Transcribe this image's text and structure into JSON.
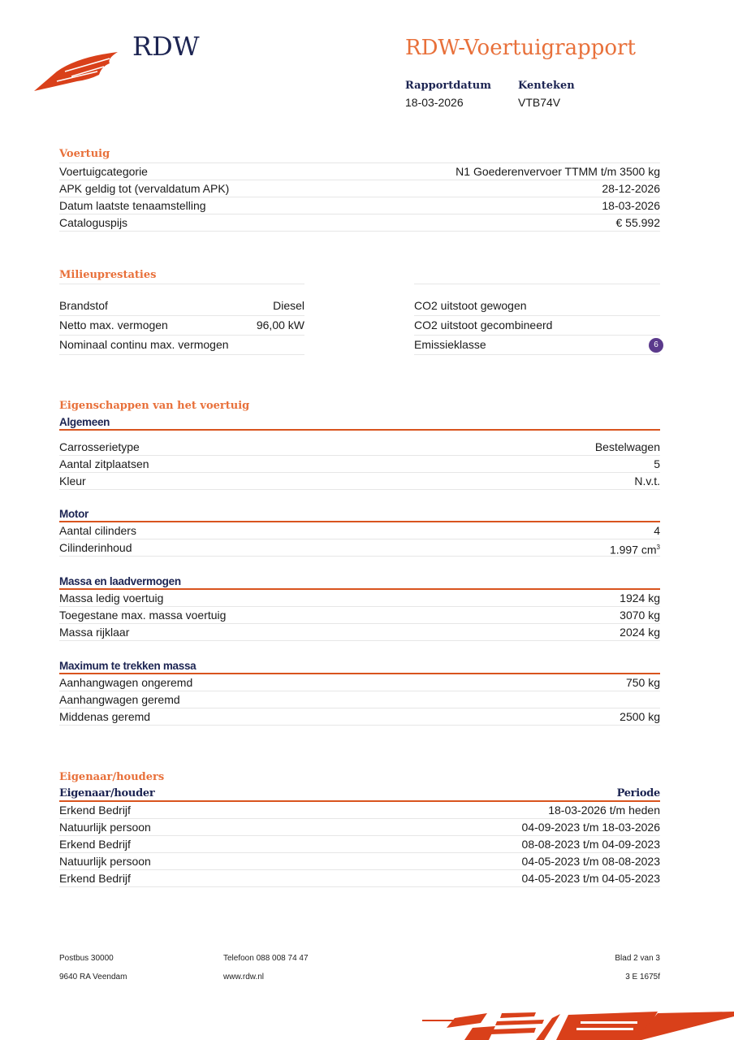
{
  "header": {
    "logo_text": "RDW",
    "title": "RDW-Voertuigrapport",
    "meta": [
      {
        "label": "Rapportdatum",
        "value": "18-03-2026"
      },
      {
        "label": "Kenteken",
        "value": "VTB74V"
      }
    ]
  },
  "voertuig": {
    "heading": "Voertuig",
    "rows": [
      {
        "label": "Voertuigcategorie",
        "value": "N1 Goederenvervoer TTMM t/m 3500 kg"
      },
      {
        "label": "APK geldig tot (vervaldatum APK)",
        "value": "28-12-2026"
      },
      {
        "label": "Datum laatste tenaamstelling",
        "value": "18-03-2026"
      },
      {
        "label": "Cataloguspijs",
        "value": "€ 55.992"
      }
    ]
  },
  "milieu": {
    "heading": "Milieuprestaties",
    "left": [
      {
        "label": "Brandstof",
        "value": "Diesel"
      },
      {
        "label": "Netto max. vermogen",
        "value": "96,00 kW"
      },
      {
        "label": "Nominaal continu max. vermogen",
        "value": ""
      }
    ],
    "right": [
      {
        "label": "CO2 uitstoot gewogen",
        "value": ""
      },
      {
        "label": "CO2 uitstoot gecombineerd",
        "value": ""
      },
      {
        "label": "Emissieklasse",
        "value": "6"
      }
    ],
    "badge_color": "#5b3a8c"
  },
  "eigenschappen": {
    "heading": "Eigenschappen van het voertuig",
    "groups": [
      {
        "title": "Algemeen",
        "rows": [
          {
            "label": "Carrosserietype",
            "value": "Bestelwagen"
          },
          {
            "label": "Aantal zitplaatsen",
            "value": "5"
          },
          {
            "label": "Kleur",
            "value": "N.v.t."
          }
        ]
      },
      {
        "title": "Motor",
        "rows": [
          {
            "label": "Aantal cilinders",
            "value": "4"
          },
          {
            "label": "Cilinderinhoud",
            "value": "1.997 cm",
            "sup": "3"
          }
        ]
      },
      {
        "title": "Massa en laadvermogen",
        "rows": [
          {
            "label": "Massa ledig voertuig",
            "value": "1924 kg"
          },
          {
            "label": "Toegestane max. massa voertuig",
            "value": "3070 kg"
          },
          {
            "label": "Massa rijklaar",
            "value": "2024 kg"
          }
        ]
      },
      {
        "title": "Maximum te trekken massa",
        "rows": [
          {
            "label": "Aanhangwagen ongeremd",
            "value": "750 kg"
          },
          {
            "label": "Aanhangwagen geremd",
            "value": ""
          },
          {
            "label": "Middenas geremd",
            "value": "2500 kg"
          }
        ]
      }
    ]
  },
  "eigenaar": {
    "heading": "Eigenaar/houders",
    "col1": "Eigenaar/houder",
    "col2": "Periode",
    "rows": [
      {
        "label": "Erkend Bedrijf",
        "value": "18-03-2026 t/m heden"
      },
      {
        "label": "Natuurlijk persoon",
        "value": "04-09-2023 t/m 18-03-2026"
      },
      {
        "label": "Erkend Bedrijf",
        "value": "08-08-2023 t/m 04-09-2023"
      },
      {
        "label": "Natuurlijk persoon",
        "value": "04-05-2023 t/m 08-08-2023"
      },
      {
        "label": "Erkend Bedrijf",
        "value": "04-05-2023 t/m 04-05-2023"
      }
    ]
  },
  "footer": {
    "address1": "Postbus 30000",
    "address2": "9640 RA Veendam",
    "phone": "Telefoon 088 008 74 47",
    "web": "www.rdw.nl",
    "page": "Blad 2 van 3",
    "code": "3 E 1675f"
  },
  "colors": {
    "accent": "#e8703a",
    "brand_red": "#d9401a",
    "navy": "#1c2452"
  }
}
